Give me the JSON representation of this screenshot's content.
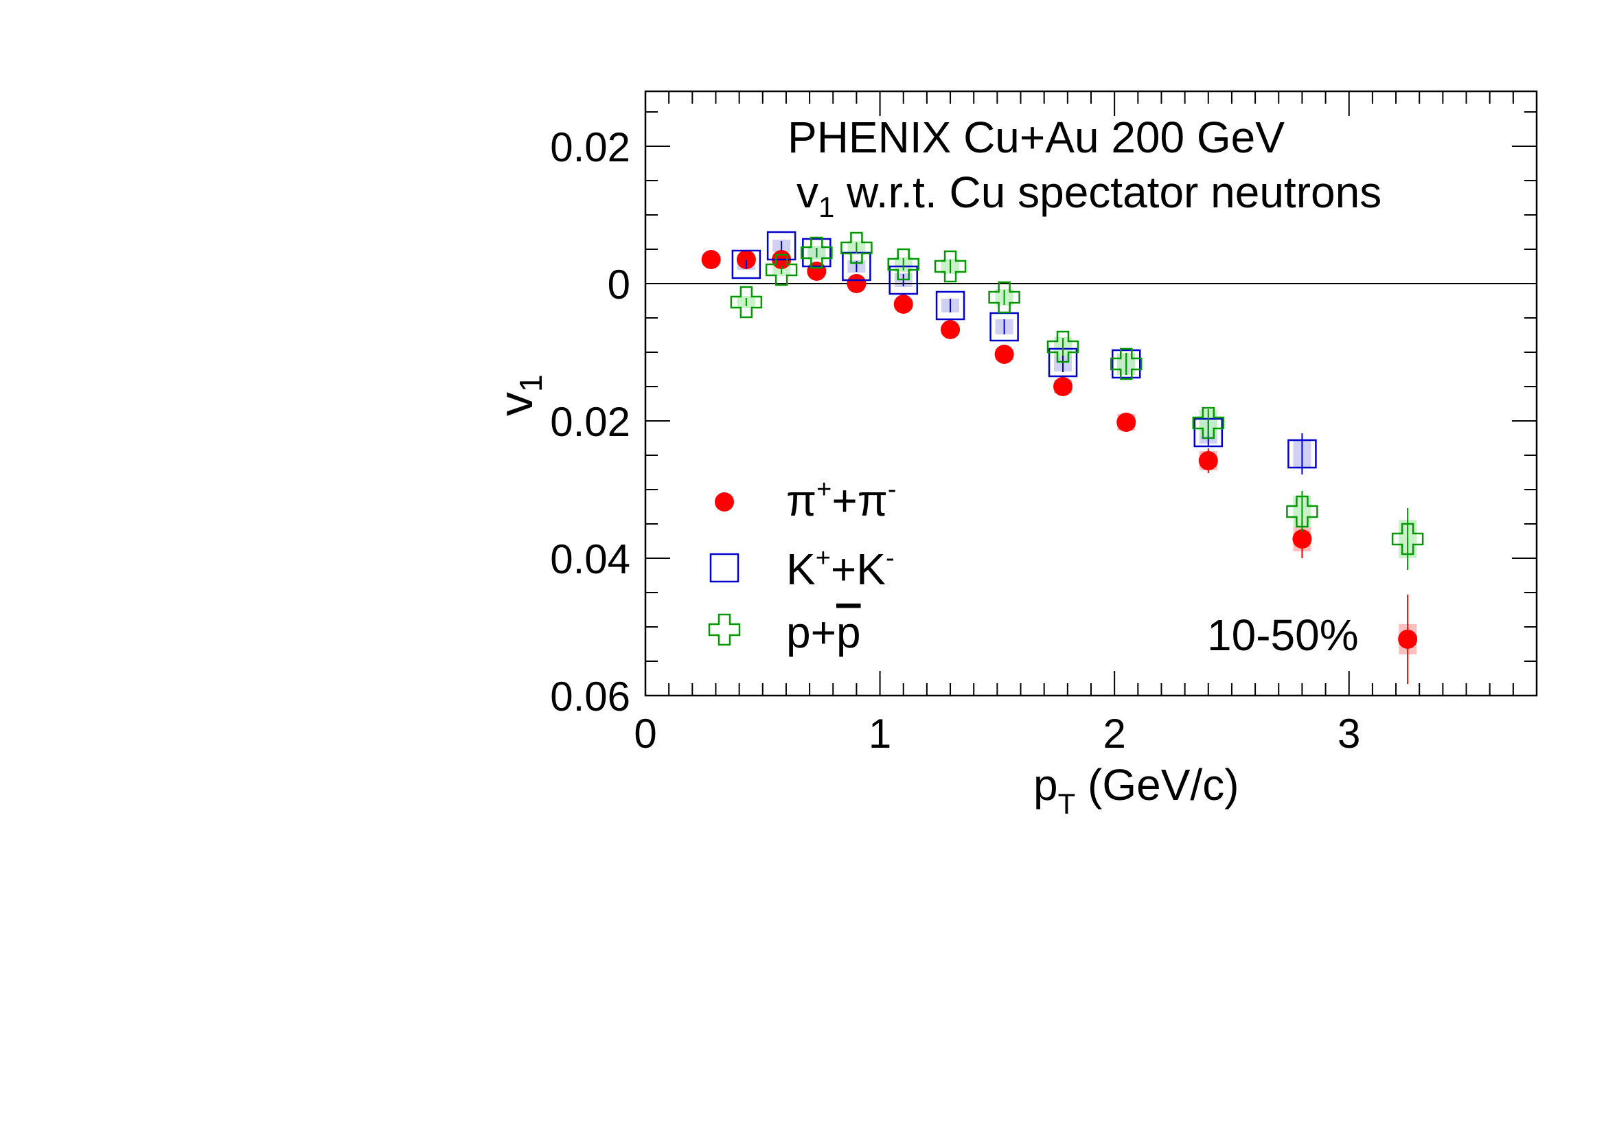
{
  "chart_data": {
    "type": "scatter",
    "title_line1": "PHENIX Cu+Au 200 GeV",
    "title_line2_main": "v",
    "title_line2_sub": "1",
    "title_line2_rest": " w.r.t. Cu spectator neutrons",
    "ylabel_main": "v",
    "ylabel_sub": "1",
    "xlabel_main": "p",
    "xlabel_sub": "T",
    "xlabel_rest": " (GeV/c)",
    "centrality_label": "10-50%",
    "xlim": [
      0,
      3.8
    ],
    "ylim": [
      -0.06,
      0.028
    ],
    "xticks": [
      0,
      1,
      2,
      3
    ],
    "xtick_labels": [
      "0",
      "1",
      "2",
      "3"
    ],
    "yticks": [
      -0.06,
      -0.04,
      -0.02,
      0,
      0.02
    ],
    "ytick_labels": [
      "0.06",
      "0.04",
      "0.02",
      "0",
      "0.02"
    ],
    "zero_line": true,
    "legend_position": "bottom-left",
    "series": [
      {
        "legend_main": "π",
        "legend_sup1": "+",
        "legend_mid": "+π",
        "legend_sup2": "-",
        "marker": "circle",
        "color": "#ff0000",
        "syst_color": "#ffb3b3",
        "x": [
          0.28,
          0.43,
          0.58,
          0.73,
          0.9,
          1.1,
          1.3,
          1.53,
          1.78,
          2.05,
          2.4,
          2.8,
          3.25
        ],
        "y": [
          0.0035,
          0.0035,
          0.0035,
          0.0018,
          0.0,
          -0.003,
          -0.0067,
          -0.0103,
          -0.015,
          -0.0202,
          -0.0258,
          -0.0372,
          -0.0518
        ],
        "stat": [
          0.0005,
          0.0005,
          0.0005,
          0.0005,
          0.0006,
          0.0007,
          0.0008,
          0.0009,
          0.0011,
          0.0014,
          0.0018,
          0.0028,
          0.0065
        ],
        "syst": [
          0.0004,
          0.0004,
          0.0004,
          0.0005,
          0.0005,
          0.0006,
          0.0007,
          0.0008,
          0.001,
          0.0012,
          0.0014,
          0.0018,
          0.0022
        ]
      },
      {
        "legend_main": "K",
        "legend_sup1": "+",
        "legend_mid": "+K",
        "legend_sup2": "-",
        "marker": "open-square",
        "color": "#0000cc",
        "syst_color": "#c8c8f0",
        "x": [
          0.43,
          0.58,
          0.73,
          0.9,
          1.1,
          1.3,
          1.53,
          1.78,
          2.05,
          2.4,
          2.8
        ],
        "y": [
          0.0028,
          0.0055,
          0.0045,
          0.0025,
          0.0005,
          -0.0032,
          -0.0063,
          -0.0115,
          -0.0117,
          -0.0217,
          -0.0248
        ],
        "stat": [
          0.0006,
          0.0007,
          0.0007,
          0.0008,
          0.0009,
          0.001,
          0.0011,
          0.0014,
          0.0016,
          0.0021,
          0.003
        ],
        "syst": [
          0.0008,
          0.0009,
          0.0009,
          0.0009,
          0.001,
          0.001,
          0.0011,
          0.0013,
          0.0014,
          0.0016,
          0.002
        ]
      },
      {
        "legend_main": "p+",
        "legend_pbar": "p",
        "marker": "open-cross",
        "color": "#009900",
        "syst_color": "#c0f0c0",
        "x": [
          0.43,
          0.58,
          0.73,
          0.9,
          1.1,
          1.3,
          1.53,
          1.78,
          2.05,
          2.4,
          2.8,
          3.25
        ],
        "y": [
          -0.0027,
          0.002,
          0.0045,
          0.0052,
          0.0028,
          0.0025,
          -0.002,
          -0.0092,
          -0.0117,
          -0.0203,
          -0.0332,
          -0.0372
        ],
        "stat": [
          0.0006,
          0.0006,
          0.0007,
          0.0008,
          0.0009,
          0.001,
          0.0011,
          0.0013,
          0.0016,
          0.002,
          0.003,
          0.0045
        ],
        "syst": [
          0.0009,
          0.0009,
          0.001,
          0.001,
          0.0011,
          0.0011,
          0.0012,
          0.0014,
          0.0016,
          0.0019,
          0.0023,
          0.0028
        ]
      }
    ]
  }
}
